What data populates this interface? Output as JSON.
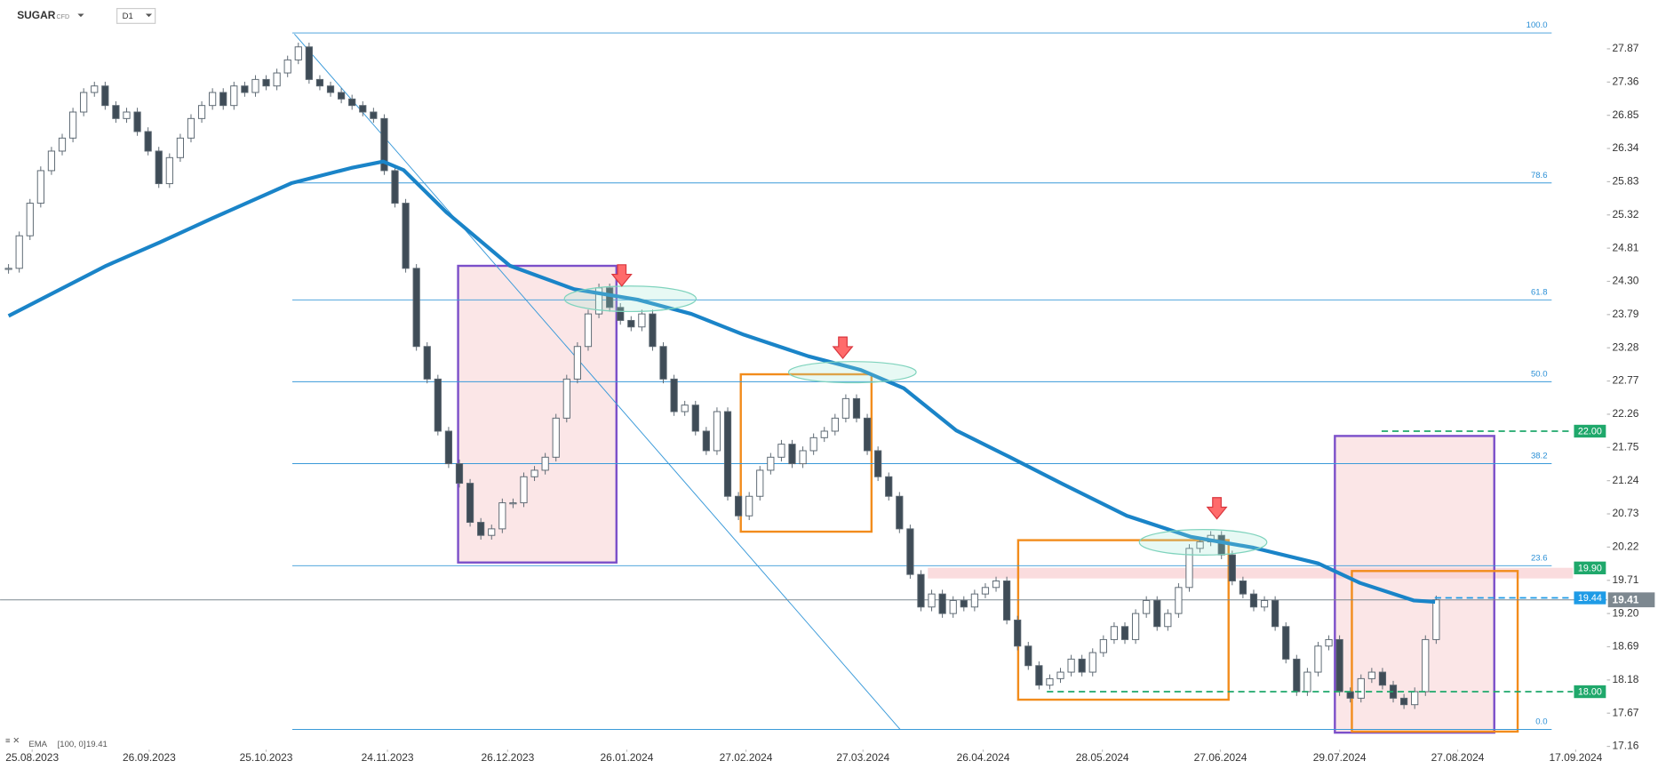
{
  "header": {
    "symbol": "SUGAR",
    "instrument": "CFD",
    "timeframe": "D1"
  },
  "chart_data": {
    "type": "candlestick",
    "values": [
      24.5,
      25.0,
      25.5,
      26.0,
      26.3,
      26.5,
      26.9,
      27.2,
      27.3,
      27.0,
      26.8,
      26.9,
      26.6,
      26.3,
      25.8,
      26.2,
      26.5,
      26.8,
      27.0,
      27.2,
      27.0,
      27.3,
      27.2,
      27.4,
      27.3,
      27.5,
      27.7,
      27.9,
      27.4,
      27.3,
      27.2,
      27.1,
      27.0,
      26.9,
      26.8,
      26.0,
      25.5,
      24.5,
      23.3,
      22.8,
      22.0,
      21.5,
      21.2,
      20.6,
      20.4,
      20.5,
      20.9,
      20.9,
      21.3,
      21.4,
      21.6,
      22.2,
      22.8,
      23.3,
      23.8,
      24.2,
      23.9,
      23.7,
      23.6,
      23.8,
      23.3,
      22.8,
      22.3,
      22.4,
      22.0,
      21.7,
      22.3,
      21.0,
      20.7,
      21.0,
      21.4,
      21.6,
      21.8,
      21.5,
      21.7,
      21.9,
      22.0,
      22.2,
      22.5,
      22.2,
      21.7,
      21.3,
      21.0,
      20.5,
      19.8,
      19.3,
      19.5,
      19.2,
      19.4,
      19.3,
      19.5,
      19.6,
      19.7,
      19.1,
      18.7,
      18.4,
      18.1,
      18.2,
      18.3,
      18.5,
      18.3,
      18.6,
      18.8,
      19.0,
      18.8,
      19.2,
      19.4,
      19.0,
      19.2,
      19.6,
      20.2,
      20.3,
      20.4,
      20.1,
      19.7,
      19.5,
      19.3,
      19.4,
      19.0,
      18.5,
      18.0,
      18.3,
      18.7,
      18.8,
      18.0,
      17.9,
      18.2,
      18.3,
      18.1,
      17.9,
      17.8,
      18.0,
      18.8,
      19.41
    ],
    "up_color": "#ffffff",
    "down_color": "#3f4c57",
    "outline_color": "#5a6670",
    "ema": {
      "name": "EMA",
      "params": "[100, 0]",
      "legend_value": 19.41,
      "color": "#1a84c8",
      "x": [
        0,
        9.1,
        14.1,
        19,
        26.4,
        31.9,
        34.9,
        36.8,
        40.8,
        46.7,
        52.7,
        58.6,
        63.6,
        68.5,
        74.5,
        79.4,
        83.4,
        88.3,
        93.3,
        98.2,
        104.2,
        110.1,
        116,
        122,
        125.9,
        130.9,
        132.9
      ],
      "values": [
        23.77,
        24.54,
        24.9,
        25.27,
        25.81,
        26.04,
        26.14,
        26.01,
        25.36,
        24.54,
        24.18,
        24.02,
        23.8,
        23.48,
        23.15,
        22.94,
        22.66,
        22.01,
        21.6,
        21.19,
        20.7,
        20.38,
        20.21,
        19.97,
        19.67,
        19.4,
        19.38
      ]
    },
    "last_price": {
      "value": 19.41,
      "label": "19.41"
    },
    "levels": [
      {
        "value": 22,
        "label": "22.00",
        "color": "#1fa86b"
      },
      {
        "value": 19.9,
        "label": "19.90",
        "color": "#1fa86b"
      },
      {
        "value": 19.44,
        "label": "19.44",
        "color": "#1e9be6"
      },
      {
        "value": 18,
        "label": "18.00",
        "color": "#1fa86b"
      }
    ],
    "fib_labels": [
      "100.0",
      "78.6",
      "61.8",
      "50.0",
      "38.2",
      "23.6",
      "0.0"
    ],
    "ylim": [
      17.11,
      28.62
    ],
    "yticks": [
      27.87,
      27.36,
      26.85,
      26.34,
      25.83,
      25.32,
      24.81,
      {
        "value": 24.3,
        "label": "24.30"
      },
      23.79,
      23.28,
      22.77,
      22.26,
      21.75,
      21.24,
      20.73,
      20.22,
      19.71,
      {
        "value": 19.2,
        "label": "19.20"
      },
      18.69,
      18.18,
      17.67,
      17.16
    ],
    "xlim": [
      -0.79,
      146.73
    ],
    "xticks": [
      {
        "value": 2.2,
        "label": "25.08.2023"
      },
      {
        "value": 13.1,
        "label": "26.09.2023"
      },
      {
        "value": 24,
        "label": "25.10.2023"
      },
      {
        "value": 35.3,
        "label": "24.11.2023"
      },
      {
        "value": 46.5,
        "label": "26.12.2023"
      },
      {
        "value": 57.6,
        "label": "26.01.2024"
      },
      {
        "value": 68.7,
        "label": "27.02.2024"
      },
      {
        "value": 79.6,
        "label": "27.03.2024"
      },
      {
        "value": 90.8,
        "label": "26.04.2024"
      },
      {
        "value": 101.9,
        "label": "28.05.2024"
      },
      {
        "value": 112.9,
        "label": "27.06.2024"
      },
      {
        "value": 124,
        "label": "29.07.2024"
      },
      {
        "value": 135,
        "label": "27.08.2024"
      },
      {
        "value": 146,
        "label": "17.09.2024"
      }
    ]
  }
}
